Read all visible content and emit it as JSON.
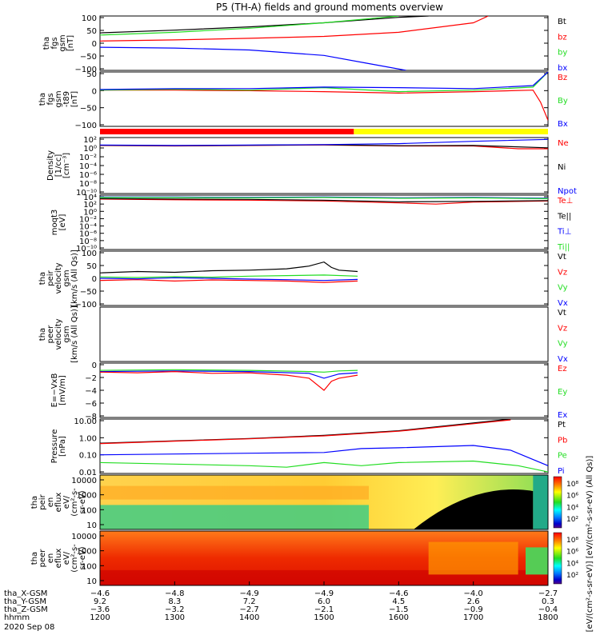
{
  "title": "P5 (TH-A) fields and ground moments overview",
  "colors": {
    "black": "#000000",
    "red": "#ff0000",
    "green": "#22dd22",
    "blue": "#0000ff",
    "yellow": "#ffff00"
  },
  "chart_data": [
    {
      "id": "fgs",
      "type": "line",
      "ylabel": [
        "tha",
        "fgs",
        "gsm",
        "[nT]"
      ],
      "ylim": [
        -100,
        100
      ],
      "ticks": [
        "100",
        "50",
        "0",
        "−50",
        "−100"
      ],
      "legend": [
        {
          "name": "Bt",
          "color": "black"
        },
        {
          "name": "bz",
          "color": "red"
        },
        {
          "name": "by",
          "color": "green"
        },
        {
          "name": "bx",
          "color": "blue"
        }
      ],
      "series": [
        {
          "name": "Bt",
          "color": "black",
          "x": [
            1200,
            1300,
            1400,
            1500,
            1600,
            1640
          ],
          "y": [
            38,
            48,
            60,
            75,
            95,
            100
          ]
        },
        {
          "name": "bz",
          "color": "red",
          "x": [
            1200,
            1300,
            1400,
            1500,
            1600,
            1700,
            1720
          ],
          "y": [
            8,
            12,
            18,
            25,
            40,
            75,
            100
          ]
        },
        {
          "name": "by",
          "color": "green",
          "x": [
            1200,
            1300,
            1400,
            1500,
            1580,
            1600
          ],
          "y": [
            30,
            40,
            55,
            75,
            95,
            100
          ]
        },
        {
          "name": "bx",
          "color": "blue",
          "x": [
            1200,
            1300,
            1400,
            1500,
            1560,
            1610
          ],
          "y": [
            -15,
            -18,
            -25,
            -45,
            -75,
            -100
          ]
        }
      ]
    },
    {
      "id": "fgs_dc",
      "type": "line",
      "ylabel": [
        "tha",
        "fgs",
        "gsm",
        "-t89",
        "[nT]"
      ],
      "ylim": [
        -120,
        60
      ],
      "ticks": [
        "50",
        "0",
        "−50",
        "−100"
      ],
      "legend": [
        {
          "name": "Bz",
          "color": "red"
        },
        {
          "name": "By",
          "color": "green"
        },
        {
          "name": "Bx",
          "color": "blue"
        }
      ],
      "series": [
        {
          "name": "Bz",
          "color": "red",
          "x": [
            1200,
            1300,
            1400,
            1500,
            1600,
            1700,
            1780,
            1790,
            1800
          ],
          "y": [
            0,
            0,
            -2,
            -5,
            -10,
            -5,
            0,
            -40,
            -100
          ]
        },
        {
          "name": "By",
          "color": "green",
          "x": [
            1200,
            1300,
            1400,
            1500,
            1600,
            1700,
            1780,
            1800
          ],
          "y": [
            0,
            3,
            0,
            8,
            -5,
            0,
            10,
            60
          ]
        },
        {
          "name": "Bx",
          "color": "blue",
          "x": [
            1200,
            1300,
            1400,
            1500,
            1600,
            1700,
            1780,
            1800
          ],
          "y": [
            2,
            5,
            5,
            10,
            8,
            5,
            15,
            60
          ]
        }
      ]
    },
    {
      "id": "density",
      "type": "line",
      "ylabel": [
        "Density",
        "[1/cc]",
        "[cm⁻³]"
      ],
      "ylim": [
        -10,
        2
      ],
      "log": true,
      "ticks": [
        "10²",
        "10⁰",
        "10⁻²",
        "10⁻⁴",
        "10⁻⁶",
        "10⁻⁸",
        "10⁻¹⁰"
      ],
      "legend": [
        {
          "name": "Ne",
          "color": "red"
        },
        {
          "name": "Ni",
          "color": "black"
        },
        {
          "name": "Npot",
          "color": "blue"
        }
      ],
      "series": [
        {
          "name": "Ne",
          "color": "red",
          "x": [
            1200,
            1300,
            1400,
            1500,
            1600,
            1700,
            1760,
            1800
          ],
          "y": [
            0.3,
            0.2,
            0.3,
            0.4,
            0.2,
            0.2,
            -0.4,
            -0.4
          ]
        },
        {
          "name": "Ni",
          "color": "black",
          "x": [
            1200,
            1300,
            1400,
            1500,
            1600,
            1700,
            1800
          ],
          "y": [
            0.35,
            0.25,
            0.35,
            0.45,
            0.25,
            0.3,
            -0.2
          ]
        },
        {
          "name": "Npot",
          "color": "blue",
          "x": [
            1200,
            1300,
            1400,
            1500,
            1600,
            1700,
            1800
          ],
          "y": [
            0.4,
            0.3,
            0.4,
            0.5,
            0.7,
            1.2,
            1.6
          ]
        }
      ]
    },
    {
      "id": "temp",
      "type": "line",
      "ylabel": [
        "moqt3",
        "[eV]"
      ],
      "ylim": [
        -10,
        4
      ],
      "log": true,
      "ticks": [
        "10⁴",
        "10²",
        "10⁰",
        "10⁻²",
        "10⁻⁴",
        "10⁻⁶",
        "10⁻⁸",
        "10⁻¹⁰"
      ],
      "legend": [
        {
          "name": "Te⊥",
          "color": "red"
        },
        {
          "name": "Te||",
          "color": "black"
        },
        {
          "name": "Ti⊥",
          "color": "blue"
        },
        {
          "name": "Ti||",
          "color": "green"
        }
      ],
      "series": [
        {
          "name": "Te⊥",
          "color": "red",
          "x": [
            1200,
            1300,
            1400,
            1500,
            1600,
            1650,
            1700,
            1800
          ],
          "y": [
            3.0,
            2.8,
            2.7,
            2.5,
            2.0,
            1.7,
            2.2,
            2.5
          ]
        },
        {
          "name": "Te||",
          "color": "black",
          "x": [
            1200,
            1300,
            1400,
            1500,
            1600,
            1700,
            1800
          ],
          "y": [
            3.1,
            3.0,
            2.9,
            2.7,
            2.3,
            2.4,
            2.6
          ]
        },
        {
          "name": "Ti⊥",
          "color": "blue",
          "x": [
            1200,
            1300,
            1400,
            1500,
            1600,
            1700,
            1800
          ],
          "y": [
            3.5,
            3.5,
            3.4,
            3.5,
            3.3,
            3.4,
            3.2
          ]
        },
        {
          "name": "Ti||",
          "color": "green",
          "x": [
            1200,
            1300,
            1400,
            1500,
            1600,
            1700,
            1800
          ],
          "y": [
            3.4,
            3.4,
            3.3,
            3.4,
            3.2,
            3.3,
            3.1
          ]
        }
      ]
    },
    {
      "id": "peir_vel",
      "type": "line",
      "ylabel": [
        "tha",
        "peir",
        "velocity",
        "gsm",
        "[km/s (All Qs)]"
      ],
      "ylim": [
        -100,
        100
      ],
      "ticks": [
        "100",
        "50",
        "0",
        "−50",
        "−100"
      ],
      "legend": [
        {
          "name": "Vt",
          "color": "black"
        },
        {
          "name": "Vz",
          "color": "red"
        },
        {
          "name": "Vy",
          "color": "green"
        },
        {
          "name": "Vx",
          "color": "blue"
        }
      ],
      "series": [
        {
          "name": "Vt",
          "color": "black",
          "x": [
            1200,
            1250,
            1300,
            1350,
            1400,
            1450,
            1480,
            1500,
            1510,
            1520,
            1545
          ],
          "y": [
            20,
            25,
            22,
            28,
            30,
            35,
            45,
            60,
            40,
            30,
            25
          ]
        },
        {
          "name": "Vz",
          "color": "red",
          "x": [
            1200,
            1250,
            1300,
            1350,
            1400,
            1450,
            1500,
            1545
          ],
          "y": [
            -8,
            -5,
            -10,
            -6,
            -8,
            -10,
            -15,
            -10
          ]
        },
        {
          "name": "Vy",
          "color": "green",
          "x": [
            1200,
            1250,
            1300,
            1350,
            1400,
            1450,
            1500,
            1545
          ],
          "y": [
            5,
            3,
            6,
            4,
            8,
            10,
            12,
            8
          ]
        },
        {
          "name": "Vx",
          "color": "blue",
          "x": [
            1200,
            1250,
            1300,
            1350,
            1400,
            1450,
            1500,
            1545
          ],
          "y": [
            0,
            -2,
            2,
            0,
            -3,
            -5,
            -8,
            -4
          ]
        }
      ]
    },
    {
      "id": "peer_vel",
      "type": "line",
      "ylabel": [
        "tha",
        "peer",
        "velocity",
        "gsm",
        "[km/s (All Qs)]"
      ],
      "ylim": [
        -100,
        100
      ],
      "ticks": [],
      "legend": [
        {
          "name": "Vt",
          "color": "black"
        },
        {
          "name": "Vz",
          "color": "red"
        },
        {
          "name": "Vy",
          "color": "green"
        },
        {
          "name": "Vx",
          "color": "blue"
        }
      ],
      "series": []
    },
    {
      "id": "efield",
      "type": "line",
      "ylabel": [
        "E=−VxB",
        "[mV/m]"
      ],
      "ylim": [
        -8,
        1
      ],
      "ticks": [
        "0",
        "−2",
        "−4",
        "−6",
        "−8"
      ],
      "legend": [
        {
          "name": "Ez",
          "color": "red"
        },
        {
          "name": "Ey",
          "color": "green"
        },
        {
          "name": "Ex",
          "color": "blue"
        }
      ],
      "series": [
        {
          "name": "Ey",
          "color": "green",
          "x": [
            1200,
            1300,
            1400,
            1480,
            1500,
            1520,
            1545
          ],
          "y": [
            -0.2,
            -0.1,
            -0.2,
            -0.4,
            -0.5,
            -0.3,
            -0.2
          ]
        },
        {
          "name": "Ex",
          "color": "blue",
          "x": [
            1200,
            1300,
            1400,
            1480,
            1500,
            1520,
            1545
          ],
          "y": [
            -0.4,
            -0.3,
            -0.4,
            -0.7,
            -1.5,
            -0.8,
            -0.6
          ]
        },
        {
          "name": "Ez",
          "color": "red",
          "x": [
            1200,
            1250,
            1300,
            1350,
            1400,
            1450,
            1480,
            1500,
            1510,
            1520,
            1545
          ],
          "y": [
            -0.5,
            -0.6,
            -0.4,
            -0.7,
            -0.6,
            -1.0,
            -1.5,
            -3.5,
            -2.0,
            -1.5,
            -1.0
          ]
        }
      ]
    },
    {
      "id": "pressure",
      "type": "line",
      "ylabel": [
        "Pressure",
        "[nPa]"
      ],
      "ylim": [
        -2.2,
        1.3
      ],
      "log": true,
      "ticks": [
        "10.00",
        "1.00",
        "0.10",
        "0.01"
      ],
      "legend": [
        {
          "name": "Pt",
          "color": "black"
        },
        {
          "name": "Pb",
          "color": "red"
        },
        {
          "name": "Pe",
          "color": "green"
        },
        {
          "name": "Pi",
          "color": "blue"
        }
      ],
      "series": [
        {
          "name": "Pt",
          "color": "black",
          "x": [
            1200,
            1300,
            1400,
            1500,
            1600,
            1700,
            1750
          ],
          "y": [
            -0.25,
            -0.1,
            0.05,
            0.25,
            0.55,
            1.05,
            1.3
          ]
        },
        {
          "name": "Pb",
          "color": "red",
          "x": [
            1200,
            1300,
            1400,
            1500,
            1600,
            1700,
            1750
          ],
          "y": [
            -0.28,
            -0.12,
            0.03,
            0.22,
            0.52,
            1.0,
            1.25
          ]
        },
        {
          "name": "Pe",
          "color": "green",
          "x": [
            1200,
            1300,
            1400,
            1450,
            1500,
            1550,
            1600,
            1700,
            1760,
            1800
          ],
          "y": [
            -1.5,
            -1.6,
            -1.7,
            -1.8,
            -1.5,
            -1.7,
            -1.5,
            -1.4,
            -1.7,
            -2.1
          ]
        },
        {
          "name": "Pi",
          "color": "blue",
          "x": [
            1200,
            1300,
            1400,
            1500,
            1550,
            1600,
            1700,
            1750,
            1800
          ],
          "y": [
            -1.0,
            -0.95,
            -0.9,
            -0.85,
            -0.6,
            -0.55,
            -0.4,
            -0.7,
            -1.7
          ]
        }
      ]
    },
    {
      "id": "peir_flux",
      "type": "heatmap",
      "ylabel": [
        "tha",
        "peir",
        "en",
        "eflux",
        "eV/",
        "(cm²-s-",
        "sr-eV)"
      ],
      "yticks": [
        "10000",
        "1000",
        "100",
        "10"
      ],
      "colorbar_ticks": [
        "10⁸",
        "10⁶",
        "10⁴",
        "10²"
      ]
    },
    {
      "id": "peer_flux",
      "type": "heatmap",
      "ylabel": [
        "tha",
        "peer",
        "en",
        "eflux",
        "eV/",
        "(cm²-s-",
        "sr-eV)"
      ],
      "yticks": [
        "10000",
        "1000",
        "100",
        "10"
      ],
      "colorbar_ticks": [
        "10⁸",
        "10⁶",
        "10⁴",
        "10²"
      ]
    }
  ],
  "colorbar_label": "[eV/(cm²-s-sr-eV)] [eV/(cm²-s-sr-eV) (All Qs)]",
  "xaxis": {
    "rows": [
      {
        "label": "tha_X-GSM",
        "values": [
          "−4.6",
          "−4.8",
          "−4.9",
          "−4.9",
          "−4.6",
          "−4.0",
          "−2.7"
        ]
      },
      {
        "label": "tha_Y-GSM",
        "values": [
          "9.2",
          "8.3",
          "7.2",
          "6.0",
          "4.5",
          "2.6",
          "0.3"
        ]
      },
      {
        "label": "tha_Z-GSM",
        "values": [
          "−3.6",
          "−3.2",
          "−2.7",
          "−2.1",
          "−1.5",
          "−0.9",
          "−0.4"
        ]
      },
      {
        "label": "hhmm",
        "values": [
          "1200",
          "1300",
          "1400",
          "1500",
          "1600",
          "1700",
          "1800"
        ]
      }
    ],
    "date": "2020 Sep 08"
  }
}
